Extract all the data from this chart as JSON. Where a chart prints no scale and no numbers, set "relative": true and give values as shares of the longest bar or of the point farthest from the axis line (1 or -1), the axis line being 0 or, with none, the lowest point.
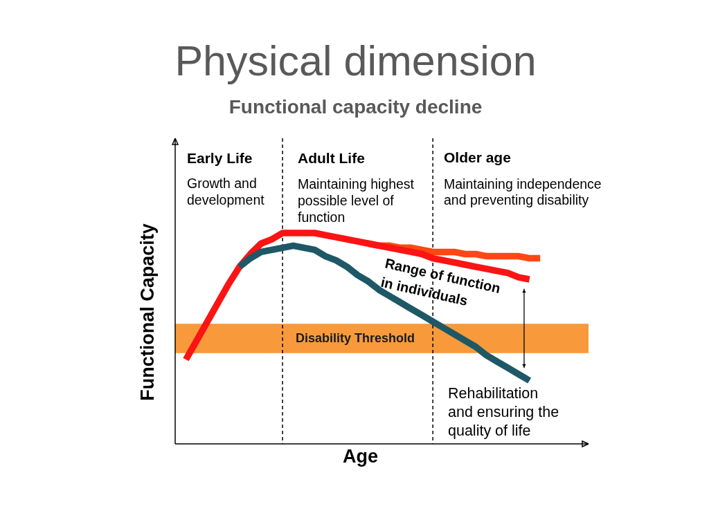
{
  "chart_data": {
    "type": "line",
    "title": "Physical dimension",
    "subtitle": "Functional capacity decline",
    "xlabel": "Age",
    "ylabel": "Functional Capacity",
    "relative": true,
    "categories": [
      null,
      null,
      null,
      null,
      null,
      null,
      null,
      null,
      null,
      null,
      null,
      null,
      null,
      null,
      null,
      null,
      null,
      null,
      null,
      null,
      null,
      null,
      null,
      null,
      null,
      null,
      null,
      null,
      null,
      null,
      null,
      null,
      null,
      null,
      null,
      null,
      null,
      null,
      null
    ],
    "series": [
      {
        "color": "#ff4713",
        "values": [
          null,
          null,
          null,
          null,
          null,
          null,
          null,
          null,
          null,
          null,
          null,
          null,
          null,
          null,
          null,
          null,
          null,
          null,
          0.95,
          0.94,
          0.94,
          0.93,
          0.93,
          0.92,
          0.91,
          0.91,
          0.91,
          0.9,
          0.9,
          0.89,
          0.89,
          0.89,
          0.89,
          0.88,
          0.88,
          null,
          null,
          null,
          null
        ]
      },
      {
        "color": "#fb1414",
        "values": [
          null,
          0.4,
          0.49,
          0.58,
          0.67,
          0.76,
          0.84,
          0.9,
          0.95,
          0.97,
          1.0,
          1.0,
          1.0,
          1.0,
          0.99,
          0.98,
          0.97,
          0.96,
          0.95,
          0.94,
          0.93,
          0.92,
          0.91,
          0.9,
          0.88,
          0.87,
          0.86,
          0.85,
          0.84,
          0.83,
          0.82,
          0.81,
          0.79,
          0.78,
          null,
          null,
          null,
          null,
          null
        ]
      },
      {
        "color": "#1e5866",
        "values": [
          null,
          null,
          null,
          null,
          null,
          null,
          0.84,
          0.88,
          0.91,
          0.92,
          0.93,
          0.94,
          0.93,
          0.92,
          0.89,
          0.87,
          0.84,
          0.8,
          0.77,
          0.73,
          0.7,
          0.67,
          0.64,
          0.61,
          0.58,
          0.55,
          0.52,
          0.49,
          0.46,
          0.42,
          0.39,
          0.36,
          0.33,
          0.3,
          null,
          null,
          null,
          null,
          null
        ]
      }
    ],
    "bands": [
      {
        "axis": "y",
        "from": 0.43,
        "to": 0.57,
        "label": "Disability Threshold",
        "color": "#f89a3b"
      }
    ],
    "annotations": [
      "Early Life",
      "Growth and development",
      "Adult Life",
      "Maintaining highest possible level of function",
      "Older age",
      "Maintaining independence and preventing disability",
      "Range of function in individuals",
      "Rehabilitation and ensuring the quality of life"
    ]
  }
}
